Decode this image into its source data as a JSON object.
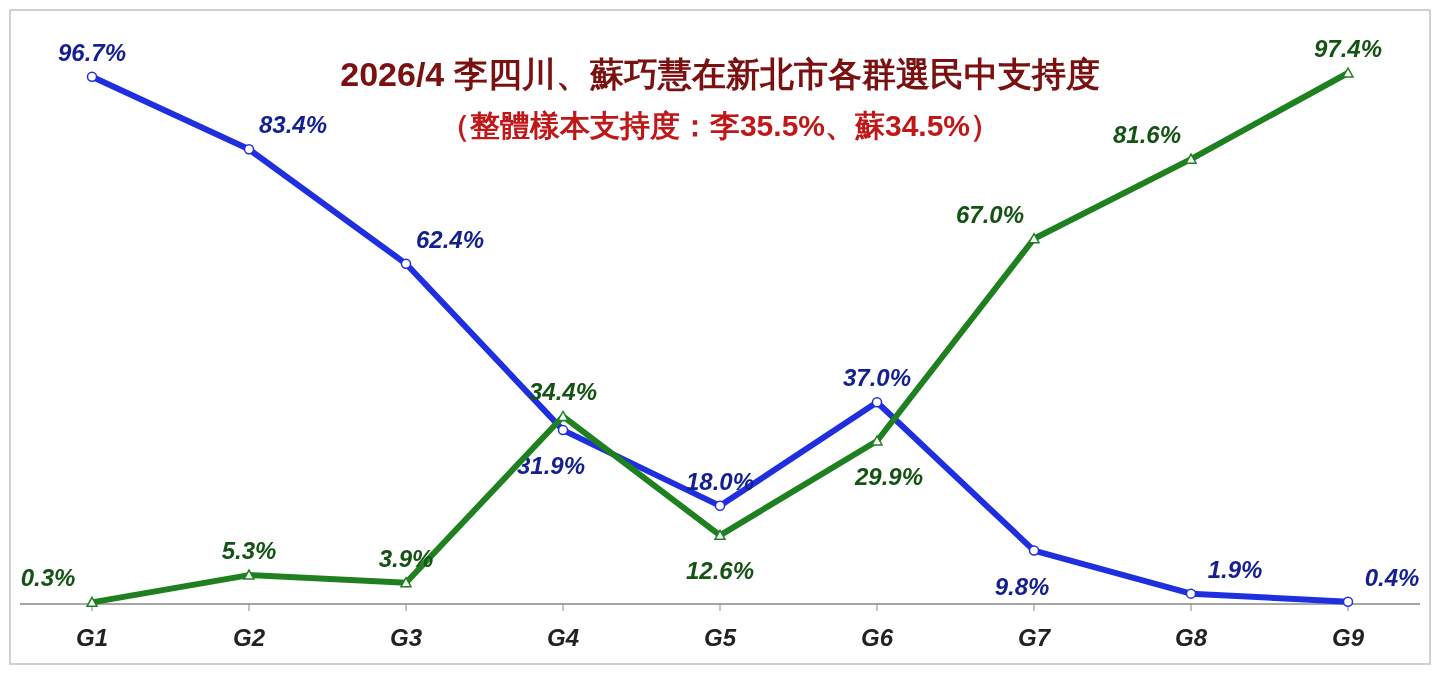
{
  "chart_data": {
    "type": "line",
    "title": "2026/4 李四川、蘇巧慧在新北市各群選民中支持度",
    "subtitle": "（整體樣本支持度：李35.5%、蘇34.5%）",
    "categories": [
      "G1",
      "G2",
      "G3",
      "G4",
      "G5",
      "G6",
      "G7",
      "G8",
      "G9"
    ],
    "series": [
      {
        "color": "#1f2fe0",
        "marker": "circle",
        "values": [
          96.7,
          83.4,
          62.4,
          31.9,
          18.0,
          37.0,
          9.8,
          1.9,
          0.4
        ],
        "value_labels": [
          "96.7%",
          "83.4%",
          "62.4%",
          "31.9%",
          "18.0%",
          "37.0%",
          "9.8%",
          "1.9%",
          "0.4%"
        ]
      },
      {
        "color": "#1f801f",
        "marker": "triangle",
        "values": [
          0.3,
          5.3,
          3.9,
          34.4,
          12.6,
          29.9,
          67.0,
          81.6,
          97.4
        ],
        "value_labels": [
          "0.3%",
          "5.3%",
          "3.9%",
          "34.4%",
          "12.6%",
          "29.9%",
          "67.0%",
          "81.6%",
          "97.4%"
        ]
      }
    ],
    "line_style": "solid"
  }
}
